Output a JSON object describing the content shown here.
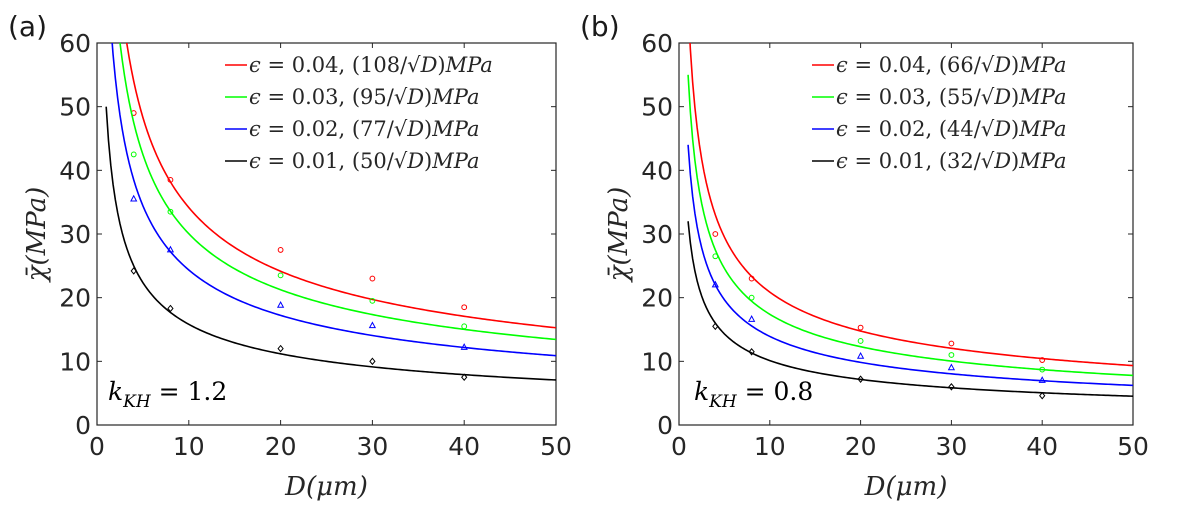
{
  "chart_data": [
    {
      "panel_label": "(a)",
      "type": "line",
      "xlabel": "D(μm)",
      "ylabel": "χ̄(MPa)",
      "xlim": [
        0,
        50
      ],
      "ylim": [
        0,
        60
      ],
      "xticks": [
        "0",
        "10",
        "20",
        "30",
        "40",
        "50"
      ],
      "yticks": [
        "0",
        "10",
        "20",
        "30",
        "40",
        "50",
        "60"
      ],
      "annotation": "k_KH = 1.2",
      "legend_position": "top-right",
      "series": [
        {
          "name": "ϵ = 0.04, (108/√D)MPa",
          "color": "#ff0000",
          "coef": 108,
          "marker": "circle",
          "points": [
            {
              "x": 4,
              "y": 49
            },
            {
              "x": 8,
              "y": 38.5
            },
            {
              "x": 20,
              "y": 27.5
            },
            {
              "x": 30,
              "y": 23
            },
            {
              "x": 40,
              "y": 18.5
            }
          ]
        },
        {
          "name": "ϵ = 0.03, (95/√D)MPa",
          "color": "#00ff00",
          "coef": 95,
          "marker": "circle",
          "points": [
            {
              "x": 4,
              "y": 42.5
            },
            {
              "x": 8,
              "y": 33.5
            },
            {
              "x": 20,
              "y": 23.5
            },
            {
              "x": 30,
              "y": 19.5
            },
            {
              "x": 40,
              "y": 15.5
            }
          ]
        },
        {
          "name": "ϵ = 0.02, (77/√D)MPa",
          "color": "#0000ff",
          "coef": 77,
          "marker": "triangle",
          "points": [
            {
              "x": 4,
              "y": 35.5
            },
            {
              "x": 8,
              "y": 27.5
            },
            {
              "x": 20,
              "y": 18.8
            },
            {
              "x": 30,
              "y": 15.6
            },
            {
              "x": 40,
              "y": 12.2
            }
          ]
        },
        {
          "name": "ϵ = 0.01, (50/√D)MPa",
          "color": "#000000",
          "coef": 50,
          "marker": "diamond",
          "points": [
            {
              "x": 4,
              "y": 24.2
            },
            {
              "x": 8,
              "y": 18.3
            },
            {
              "x": 20,
              "y": 12
            },
            {
              "x": 30,
              "y": 10
            },
            {
              "x": 40,
              "y": 7.5
            }
          ]
        }
      ]
    },
    {
      "panel_label": "(b)",
      "type": "line",
      "xlabel": "D(μm)",
      "ylabel": "χ̄(MPa)",
      "xlim": [
        0,
        50
      ],
      "ylim": [
        0,
        60
      ],
      "xticks": [
        "0",
        "10",
        "20",
        "30",
        "40",
        "50"
      ],
      "yticks": [
        "0",
        "10",
        "20",
        "30",
        "40",
        "50",
        "60"
      ],
      "annotation": "k_KH = 0.8",
      "legend_position": "top-right",
      "series": [
        {
          "name": "ϵ = 0.04, (66/√D)MPa",
          "color": "#ff0000",
          "coef": 66,
          "marker": "circle",
          "points": [
            {
              "x": 4,
              "y": 30
            },
            {
              "x": 8,
              "y": 23
            },
            {
              "x": 20,
              "y": 15.3
            },
            {
              "x": 30,
              "y": 12.8
            },
            {
              "x": 40,
              "y": 10.2
            }
          ]
        },
        {
          "name": "ϵ = 0.03, (55/√D)MPa",
          "color": "#00ff00",
          "coef": 55,
          "marker": "circle",
          "points": [
            {
              "x": 4,
              "y": 26.5
            },
            {
              "x": 8,
              "y": 20
            },
            {
              "x": 20,
              "y": 13.2
            },
            {
              "x": 30,
              "y": 11
            },
            {
              "x": 40,
              "y": 8.7
            }
          ]
        },
        {
          "name": "ϵ = 0.02, (44/√D)MPa",
          "color": "#0000ff",
          "coef": 44,
          "marker": "triangle",
          "points": [
            {
              "x": 4,
              "y": 22
            },
            {
              "x": 8,
              "y": 16.6
            },
            {
              "x": 20,
              "y": 10.8
            },
            {
              "x": 30,
              "y": 9
            },
            {
              "x": 40,
              "y": 7
            }
          ]
        },
        {
          "name": "ϵ = 0.01, (32/√D)MPa",
          "color": "#000000",
          "coef": 32,
          "marker": "diamond",
          "points": [
            {
              "x": 4,
              "y": 15.5
            },
            {
              "x": 8,
              "y": 11.5
            },
            {
              "x": 20,
              "y": 7.2
            },
            {
              "x": 30,
              "y": 6
            },
            {
              "x": 40,
              "y": 4.6
            }
          ]
        }
      ]
    }
  ]
}
